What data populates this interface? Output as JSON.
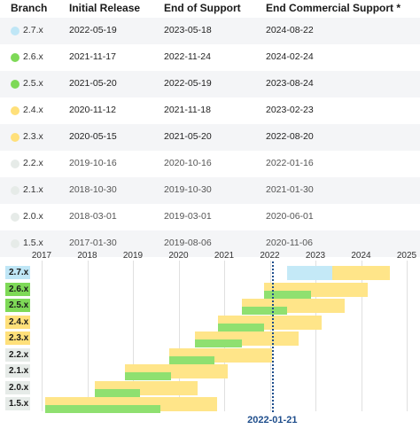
{
  "table": {
    "headers": {
      "branch": "Branch",
      "initial_release": "Initial Release",
      "end_of_support": "End of Support",
      "end_commercial_support": "End Commercial Support *"
    },
    "rows": [
      {
        "branch": "2.7.x",
        "initial_release": "2022-05-19",
        "end_of_support": "2023-05-18",
        "end_commercial_support": "2024-08-22",
        "status_color": "#bfe6f6"
      },
      {
        "branch": "2.6.x",
        "initial_release": "2021-11-17",
        "end_of_support": "2022-11-24",
        "end_commercial_support": "2024-02-24",
        "status_color": "#7ed957"
      },
      {
        "branch": "2.5.x",
        "initial_release": "2021-05-20",
        "end_of_support": "2022-05-19",
        "end_commercial_support": "2023-08-24",
        "status_color": "#7ed957"
      },
      {
        "branch": "2.4.x",
        "initial_release": "2020-11-12",
        "end_of_support": "2021-11-18",
        "end_commercial_support": "2023-02-23",
        "status_color": "#ffe07a"
      },
      {
        "branch": "2.3.x",
        "initial_release": "2020-05-15",
        "end_of_support": "2021-05-20",
        "end_commercial_support": "2022-08-20",
        "status_color": "#ffe07a"
      },
      {
        "branch": "2.2.x",
        "initial_release": "2019-10-16",
        "end_of_support": "2020-10-16",
        "end_commercial_support": "2022-01-16",
        "status_color": "#e6ebe8"
      },
      {
        "branch": "2.1.x",
        "initial_release": "2018-10-30",
        "end_of_support": "2019-10-30",
        "end_commercial_support": "2021-01-30",
        "status_color": "#e6ebe8"
      },
      {
        "branch": "2.0.x",
        "initial_release": "2018-03-01",
        "end_of_support": "2019-03-01",
        "end_commercial_support": "2020-06-01",
        "status_color": "#e6ebe8"
      },
      {
        "branch": "1.5.x",
        "initial_release": "2017-01-30",
        "end_of_support": "2019-08-06",
        "end_commercial_support": "2020-11-06",
        "status_color": "#e6ebe8"
      }
    ]
  },
  "timeline": {
    "years": [
      "2017",
      "2018",
      "2019",
      "2020",
      "2021",
      "2022",
      "2023",
      "2024",
      "2025"
    ],
    "today_label": "2022-01-21",
    "branches": [
      {
        "label": "2.7.x",
        "label_color": "#bfe6f6"
      },
      {
        "label": "2.6.x",
        "label_color": "#7ed957"
      },
      {
        "label": "2.5.x",
        "label_color": "#7ed957"
      },
      {
        "label": "2.4.x",
        "label_color": "#ffe07a"
      },
      {
        "label": "2.3.x",
        "label_color": "#ffe07a"
      },
      {
        "label": "2.2.x",
        "label_color": "#e6ebe8"
      },
      {
        "label": "2.1.x",
        "label_color": "#e6ebe8"
      },
      {
        "label": "2.0.x",
        "label_color": "#e6ebe8"
      },
      {
        "label": "1.5.x",
        "label_color": "#e6ebe8"
      }
    ],
    "colors": {
      "commercial_support": "#ffe589",
      "active_support": "#8fe070",
      "current_release": "#c4e9f7",
      "today_line": "#1f4e8c"
    }
  }
}
